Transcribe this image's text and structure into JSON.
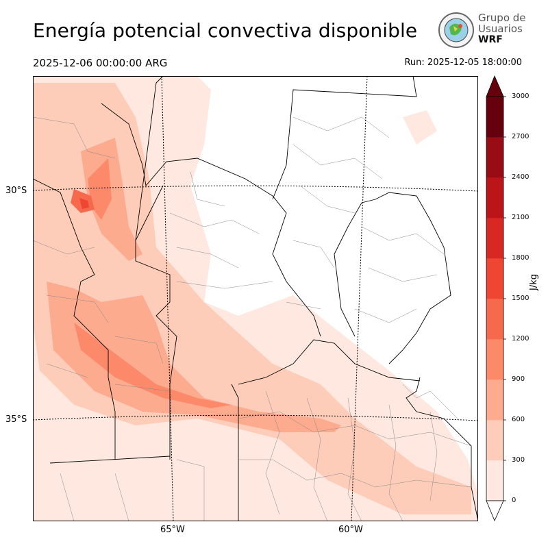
{
  "header": {
    "title": "Energía potencial convectiva disponible",
    "valid_time": "2025-12-06 00:00:00 ARG",
    "run_time": "Run: 2025-12-05 18:00:00"
  },
  "logo": {
    "line1": "Grupo de",
    "line2": "Usuarios",
    "line3": "WRF"
  },
  "map": {
    "lat_labels": [
      "30°S",
      "35°S"
    ],
    "lon_labels": [
      "65°W",
      "60°W"
    ]
  },
  "colorbar": {
    "unit": "J/kg",
    "ticks": [
      "0",
      "300",
      "600",
      "900",
      "1200",
      "1500",
      "1800",
      "2100",
      "2400",
      "2700",
      "3000"
    ],
    "colors": [
      "#fee8df",
      "#fdcdb9",
      "#fcab8f",
      "#fc8a6a",
      "#f6694d",
      "#ef4533",
      "#d92723",
      "#bb151a",
      "#9a0c13",
      "#67000d"
    ],
    "under_color": "#ffffff",
    "over_color": "#67000d"
  }
}
